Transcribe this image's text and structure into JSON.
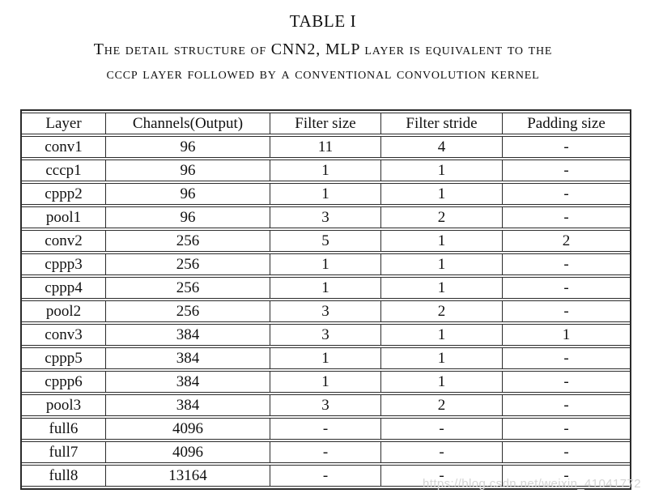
{
  "title": "TABLE I",
  "caption": {
    "line1": "The detail structure of CNN2, MLP layer is equivalent to the",
    "line2": "cccp layer followed by a conventional convolution kernel"
  },
  "table": {
    "columns": [
      "Layer",
      "Channels(Output)",
      "Filter size",
      "Filter stride",
      "Padding size"
    ],
    "rows": [
      [
        "conv1",
        "96",
        "11",
        "4",
        "-"
      ],
      [
        "cccp1",
        "96",
        "1",
        "1",
        "-"
      ],
      [
        "cppp2",
        "96",
        "1",
        "1",
        "-"
      ],
      [
        "pool1",
        "96",
        "3",
        "2",
        "-"
      ],
      [
        "conv2",
        "256",
        "5",
        "1",
        "2"
      ],
      [
        "cppp3",
        "256",
        "1",
        "1",
        "-"
      ],
      [
        "cppp4",
        "256",
        "1",
        "1",
        "-"
      ],
      [
        "pool2",
        "256",
        "3",
        "2",
        "-"
      ],
      [
        "conv3",
        "384",
        "3",
        "1",
        "1"
      ],
      [
        "cppp5",
        "384",
        "1",
        "1",
        "-"
      ],
      [
        "cppp6",
        "384",
        "1",
        "1",
        "-"
      ],
      [
        "pool3",
        "384",
        "3",
        "2",
        "-"
      ],
      [
        "full6",
        "4096",
        "-",
        "-",
        "-"
      ],
      [
        "full7",
        "4096",
        "-",
        "-",
        "-"
      ],
      [
        "full8",
        "13164",
        "-",
        "-",
        "-"
      ]
    ]
  },
  "watermark": "https://blog.csdn.net/weixin_41041772",
  "colors": {
    "text": "#111111",
    "border": "#2b2b2b",
    "watermark": "#d4d4d4",
    "background": "#ffffff"
  }
}
